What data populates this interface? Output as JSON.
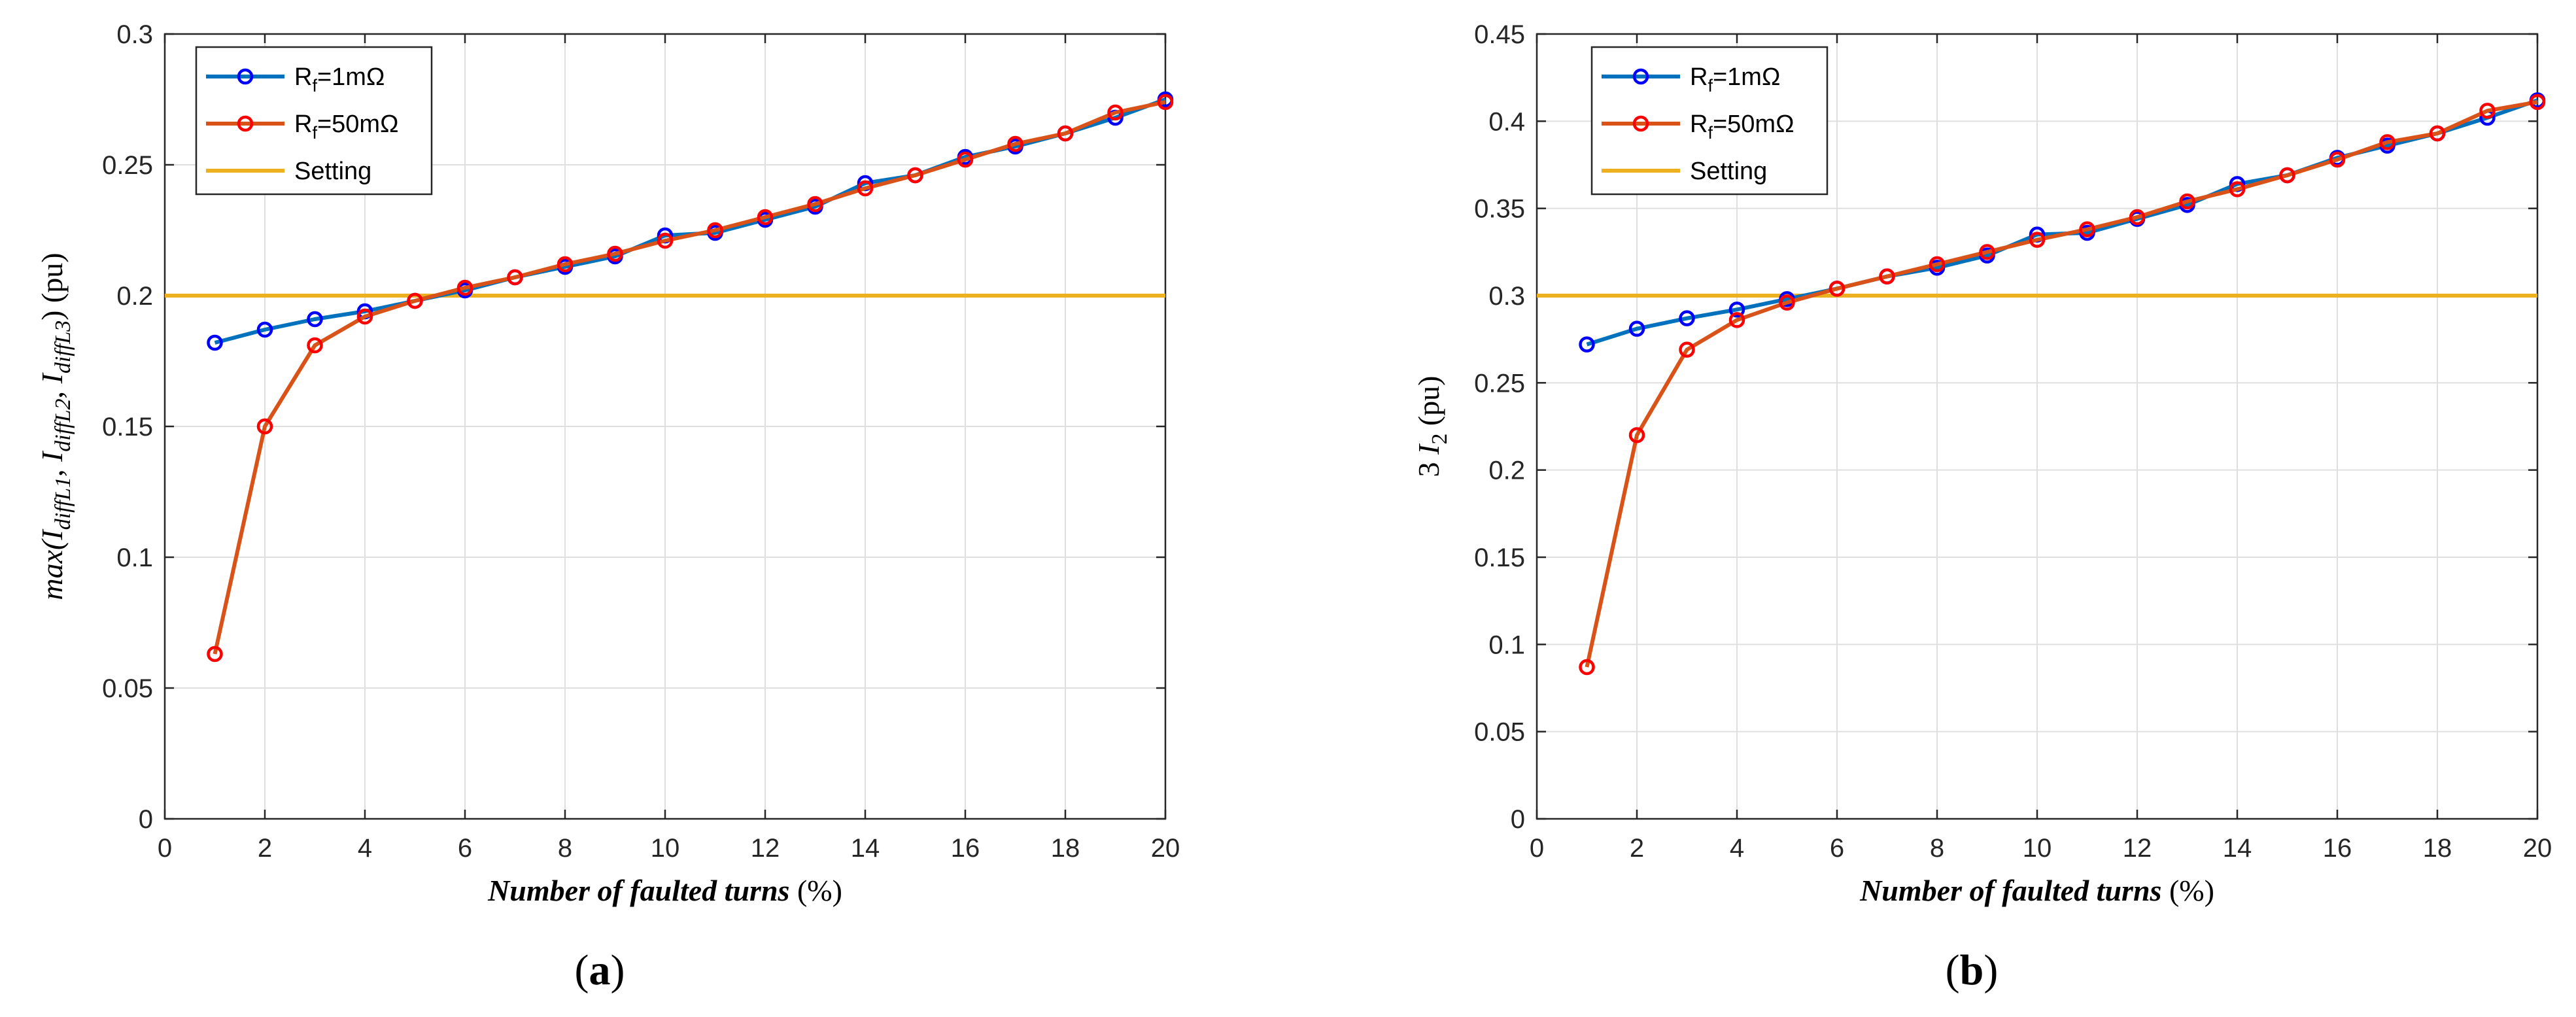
{
  "chart_data": [
    {
      "type": "line",
      "panel_label": "a",
      "xlabel": "Number of faulted turns",
      "xlabel_unit": "(%)",
      "ylabel": {
        "prefix": "max(",
        "var1": "I",
        "sub1": "diffL1",
        "var2": "I",
        "sub2": "diffL2",
        "var3": "I",
        "sub3": "diffL3",
        "suffix": ") (pu)"
      },
      "xlim": [
        0,
        20
      ],
      "ylim": [
        0,
        0.3
      ],
      "xticks": [
        "0",
        "2",
        "4",
        "6",
        "8",
        "10",
        "12",
        "14",
        "16",
        "18",
        "20"
      ],
      "yticks": [
        "0",
        "0.05",
        "0.1",
        "0.15",
        "0.2",
        "0.25",
        "0.3"
      ],
      "grid": true,
      "legend_position": "top-left",
      "setting": 0.2,
      "x": [
        1,
        2,
        3,
        4,
        5,
        6,
        7,
        8,
        9,
        10,
        11,
        12,
        13,
        14,
        15,
        16,
        17,
        18,
        19,
        20
      ],
      "series": [
        {
          "name": "R_f=1mΩ",
          "label_main": "R",
          "label_sub": "f",
          "label_rest": "=1mΩ",
          "color": "#0072BD",
          "marker_color": "#0000FF",
          "values": [
            0.182,
            0.187,
            0.191,
            0.194,
            0.198,
            0.202,
            0.207,
            0.211,
            0.215,
            0.223,
            0.224,
            0.229,
            0.234,
            0.243,
            0.246,
            0.253,
            0.257,
            0.262,
            0.268,
            0.275
          ]
        },
        {
          "name": "R_f=50mΩ",
          "label_main": "R",
          "label_sub": "f",
          "label_rest": "=50mΩ",
          "color": "#D95319",
          "marker_color": "#FF0000",
          "values": [
            0.063,
            0.15,
            0.181,
            0.192,
            0.198,
            0.203,
            0.207,
            0.212,
            0.216,
            0.221,
            0.225,
            0.23,
            0.235,
            0.241,
            0.246,
            0.252,
            0.258,
            0.262,
            0.27,
            0.274
          ]
        }
      ],
      "setting_series": {
        "name": "Setting",
        "color": "#EDB120"
      }
    },
    {
      "type": "line",
      "panel_label": "b",
      "xlabel": "Number of faulted turns",
      "xlabel_unit": "(%)",
      "ylabel": {
        "prefix": "3 ",
        "var1": "I",
        "sub1": "2",
        "suffix": " (pu)"
      },
      "xlim": [
        0,
        20
      ],
      "ylim": [
        0,
        0.45
      ],
      "xticks": [
        "0",
        "2",
        "4",
        "6",
        "8",
        "10",
        "12",
        "14",
        "16",
        "18",
        "20"
      ],
      "yticks": [
        "0",
        "0.05",
        "0.1",
        "0.15",
        "0.2",
        "0.25",
        "0.3",
        "0.35",
        "0.4",
        "0.45"
      ],
      "grid": true,
      "legend_position": "top-left",
      "setting": 0.3,
      "x": [
        1,
        2,
        3,
        4,
        5,
        6,
        7,
        8,
        9,
        10,
        11,
        12,
        13,
        14,
        15,
        16,
        17,
        18,
        19,
        20
      ],
      "series": [
        {
          "name": "R_f=1mΩ",
          "label_main": "R",
          "label_sub": "f",
          "label_rest": "=1mΩ",
          "color": "#0072BD",
          "marker_color": "#0000FF",
          "values": [
            0.272,
            0.281,
            0.287,
            0.292,
            0.298,
            0.304,
            0.311,
            0.316,
            0.323,
            0.335,
            0.336,
            0.344,
            0.352,
            0.364,
            0.369,
            0.379,
            0.386,
            0.393,
            0.402,
            0.412
          ]
        },
        {
          "name": "R_f=50mΩ",
          "label_main": "R",
          "label_sub": "f",
          "label_rest": "=50mΩ",
          "color": "#D95319",
          "marker_color": "#FF0000",
          "values": [
            0.087,
            0.22,
            0.269,
            0.286,
            0.296,
            0.304,
            0.311,
            0.318,
            0.325,
            0.332,
            0.338,
            0.345,
            0.354,
            0.361,
            0.369,
            0.378,
            0.388,
            0.393,
            0.406,
            0.411
          ]
        }
      ],
      "setting_series": {
        "name": "Setting",
        "color": "#EDB120"
      }
    }
  ]
}
